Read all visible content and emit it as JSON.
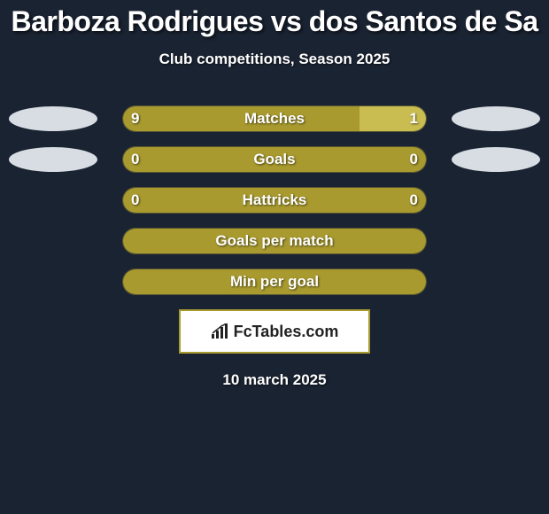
{
  "title": "Barboza Rodrigues vs dos Santos de Sa",
  "subtitle": "Club competitions, Season 2025",
  "date": "10 march 2025",
  "logo_text": "FcTables.com",
  "colors": {
    "background": "#1a2332",
    "bar_olive": "#a89a2f",
    "bar_olive_light": "#c9bc50",
    "ellipse_light": "#d8dde3",
    "ellipse_mid": "#b8bdc3",
    "text": "#ffffff"
  },
  "rows": [
    {
      "label": "Matches",
      "left_value": "9",
      "right_value": "1",
      "left_pct": 78,
      "right_pct": 22,
      "left_color": "#a89a2f",
      "right_color": "#c9bc50",
      "show_left_ellipse": true,
      "show_right_ellipse": true,
      "ellipse_left_color": "#d8dde3",
      "ellipse_right_color": "#d8dde3",
      "show_values": true
    },
    {
      "label": "Goals",
      "left_value": "0",
      "right_value": "0",
      "left_pct": 50,
      "right_pct": 50,
      "left_color": "#a89a2f",
      "right_color": "#a89a2f",
      "show_left_ellipse": true,
      "show_right_ellipse": true,
      "ellipse_left_color": "#d8dde3",
      "ellipse_right_color": "#d8dde3",
      "show_values": true
    },
    {
      "label": "Hattricks",
      "left_value": "0",
      "right_value": "0",
      "left_pct": 50,
      "right_pct": 50,
      "left_color": "#a89a2f",
      "right_color": "#a89a2f",
      "show_left_ellipse": false,
      "show_right_ellipse": false,
      "show_values": true
    },
    {
      "label": "Goals per match",
      "left_value": "",
      "right_value": "",
      "left_pct": 50,
      "right_pct": 50,
      "left_color": "#a89a2f",
      "right_color": "#a89a2f",
      "show_left_ellipse": false,
      "show_right_ellipse": false,
      "show_values": false
    },
    {
      "label": "Min per goal",
      "left_value": "",
      "right_value": "",
      "left_pct": 50,
      "right_pct": 50,
      "left_color": "#a89a2f",
      "right_color": "#a89a2f",
      "show_left_ellipse": false,
      "show_right_ellipse": false,
      "show_values": false
    }
  ]
}
